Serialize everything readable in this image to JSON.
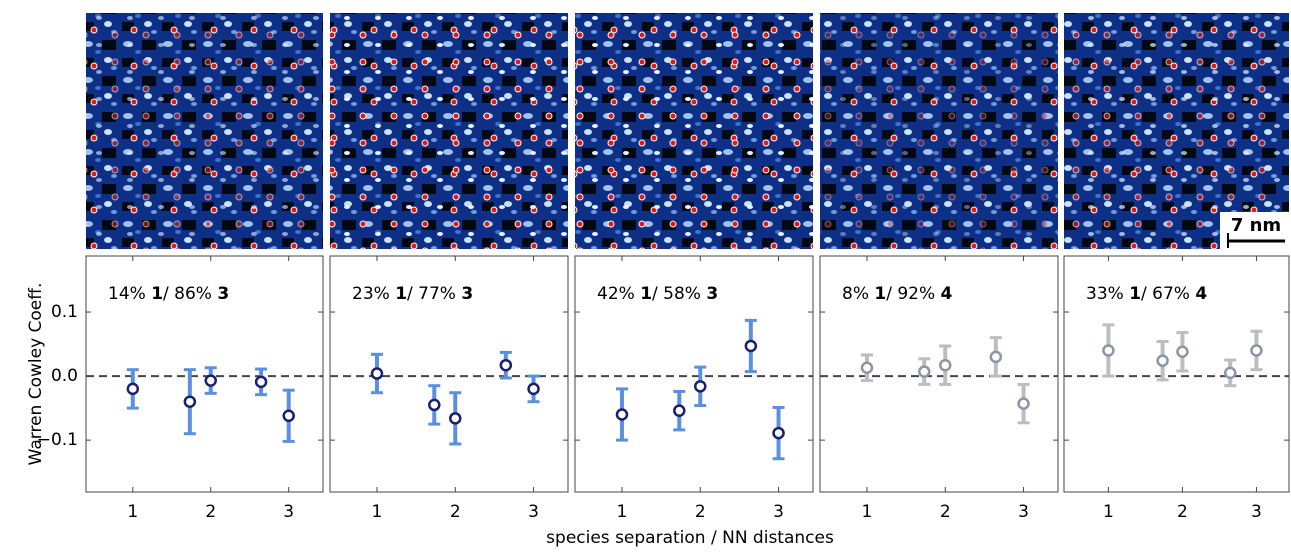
{
  "shared": {
    "ylabel": "Warren Cowley Coeff.",
    "xlabel": "species separation / NN distances",
    "ylim": [
      -0.181,
      0.1875
    ],
    "yticks": [
      {
        "value": -0.1,
        "label": "−0.1"
      },
      {
        "value": 0,
        "label": "0.0"
      },
      0.1
    ],
    "xlim": [
      0.4,
      3.44
    ],
    "xticks": [
      1,
      2,
      3
    ],
    "scale_bar": "7 nm"
  },
  "chart_data": [
    {
      "type": "errorbar",
      "annotation": [
        "14% ",
        "1",
        "/ 86% ",
        "3"
      ],
      "color": "#5b8fe0",
      "marker_color": "#1a1f6e",
      "x": [
        1,
        1.732,
        2,
        2.646,
        3
      ],
      "values": [
        -0.02,
        -0.04,
        -0.007,
        -0.009,
        -0.062
      ],
      "errors": [
        0.03,
        0.05,
        0.02,
        0.02,
        0.04
      ]
    },
    {
      "type": "errorbar",
      "annotation": [
        "23% ",
        "1",
        "/ 77% ",
        "3"
      ],
      "color": "#5b8fe0",
      "marker_color": "#1a1f6e",
      "x": [
        1,
        1.732,
        2,
        2.646,
        3
      ],
      "values": [
        0.004,
        -0.045,
        -0.066,
        0.017,
        -0.02
      ],
      "errors": [
        0.03,
        0.03,
        0.04,
        0.02,
        0.02
      ]
    },
    {
      "type": "errorbar",
      "annotation": [
        "42% ",
        "1",
        "/ 58% ",
        "3"
      ],
      "color": "#5b8fe0",
      "marker_color": "#1a1f6e",
      "x": [
        1,
        1.732,
        2,
        2.646,
        3
      ],
      "values": [
        -0.06,
        -0.054,
        -0.016,
        0.047,
        -0.089
      ],
      "errors": [
        0.04,
        0.03,
        0.03,
        0.04,
        0.04
      ]
    },
    {
      "type": "errorbar",
      "annotation": [
        "8% ",
        "1",
        "/ 92% ",
        "4"
      ],
      "color": "#bdbdbd",
      "marker_color": "#8a96a6",
      "x": [
        1,
        1.732,
        2,
        2.646,
        3
      ],
      "values": [
        0.013,
        0.007,
        0.017,
        0.03,
        -0.043
      ],
      "errors": [
        0.02,
        0.02,
        0.03,
        0.03,
        0.03
      ]
    },
    {
      "type": "errorbar",
      "annotation": [
        "33% ",
        "1",
        "/ 67% ",
        "4"
      ],
      "color": "#bdbdbd",
      "marker_color": "#8a96a6",
      "x": [
        1,
        1.732,
        2,
        2.646,
        3
      ],
      "values": [
        0.04,
        0.024,
        0.038,
        0.005,
        0.04
      ],
      "errors": [
        0.04,
        0.03,
        0.03,
        0.02,
        0.03
      ]
    }
  ]
}
